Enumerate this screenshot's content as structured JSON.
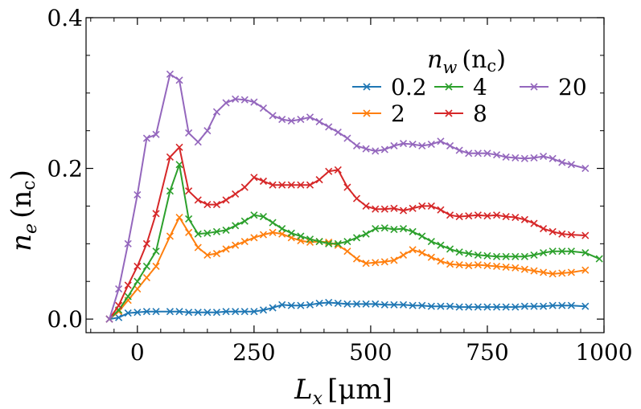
{
  "chart_data": {
    "type": "line",
    "xlabel_main": "L",
    "xlabel_sub": "x",
    "xlabel_unit": "[μm]",
    "ylabel_main": "n",
    "ylabel_sub": "e",
    "ylabel_unit": "(n",
    "ylabel_unit_sub": "c",
    "ylabel_unit_close": ")",
    "xlim": [
      -110,
      1000
    ],
    "ylim": [
      -0.018,
      0.4
    ],
    "xticks": [
      {
        "value": 0,
        "label": "0"
      },
      {
        "value": 250,
        "label": "250"
      },
      {
        "value": 500,
        "label": "500"
      },
      {
        "value": 750,
        "label": "750"
      },
      {
        "value": 1000,
        "label": "1000"
      }
    ],
    "yticks": [
      {
        "value": 0.0,
        "label": "0.0"
      },
      {
        "value": 0.2,
        "label": "0.2"
      },
      {
        "value": 0.4,
        "label": "0.4"
      }
    ],
    "legend": {
      "title_main": "n",
      "title_sub": "w",
      "title_unit": "(n",
      "title_unit_sub": "c",
      "title_unit_close": ")",
      "placement": "top-right",
      "columns": 3
    },
    "series": [
      {
        "name": "0.2",
        "color": "#1f77b4",
        "x": [
          -60,
          -40,
          -20,
          0,
          20,
          40,
          70,
          90,
          110,
          130,
          150,
          170,
          190,
          210,
          230,
          250,
          270,
          290,
          310,
          330,
          350,
          370,
          390,
          410,
          430,
          450,
          470,
          490,
          510,
          530,
          550,
          570,
          590,
          610,
          630,
          650,
          670,
          690,
          710,
          730,
          750,
          770,
          790,
          810,
          830,
          850,
          870,
          890,
          910,
          930,
          960
        ],
        "y": [
          0.0,
          0.002,
          0.008,
          0.009,
          0.01,
          0.01,
          0.01,
          0.01,
          0.009,
          0.009,
          0.009,
          0.009,
          0.01,
          0.01,
          0.01,
          0.01,
          0.012,
          0.015,
          0.019,
          0.018,
          0.018,
          0.019,
          0.021,
          0.022,
          0.021,
          0.02,
          0.02,
          0.02,
          0.02,
          0.019,
          0.019,
          0.019,
          0.018,
          0.018,
          0.017,
          0.017,
          0.017,
          0.016,
          0.016,
          0.016,
          0.016,
          0.016,
          0.016,
          0.016,
          0.017,
          0.017,
          0.017,
          0.018,
          0.018,
          0.018,
          0.017
        ]
      },
      {
        "name": "2",
        "color": "#ff7f0e",
        "x": [
          -60,
          -40,
          -20,
          0,
          20,
          40,
          70,
          90,
          110,
          130,
          150,
          170,
          190,
          210,
          230,
          250,
          270,
          290,
          310,
          330,
          350,
          370,
          390,
          410,
          430,
          450,
          470,
          490,
          510,
          530,
          550,
          570,
          590,
          610,
          630,
          650,
          670,
          690,
          710,
          730,
          750,
          770,
          790,
          810,
          830,
          850,
          870,
          890,
          910,
          930,
          960
        ],
        "y": [
          0.0,
          0.01,
          0.025,
          0.04,
          0.055,
          0.07,
          0.11,
          0.135,
          0.115,
          0.095,
          0.085,
          0.087,
          0.093,
          0.098,
          0.103,
          0.108,
          0.112,
          0.115,
          0.113,
          0.108,
          0.104,
          0.102,
          0.103,
          0.102,
          0.098,
          0.09,
          0.08,
          0.074,
          0.075,
          0.076,
          0.078,
          0.085,
          0.092,
          0.088,
          0.082,
          0.077,
          0.073,
          0.072,
          0.071,
          0.072,
          0.071,
          0.07,
          0.069,
          0.068,
          0.066,
          0.064,
          0.062,
          0.06,
          0.061,
          0.062,
          0.065
        ]
      },
      {
        "name": "4",
        "color": "#2ca02c",
        "x": [
          -60,
          -40,
          -20,
          0,
          20,
          40,
          70,
          90,
          110,
          130,
          150,
          170,
          190,
          210,
          230,
          250,
          270,
          290,
          310,
          330,
          350,
          370,
          390,
          410,
          430,
          450,
          470,
          490,
          510,
          530,
          550,
          570,
          590,
          610,
          630,
          650,
          670,
          690,
          710,
          730,
          750,
          770,
          790,
          810,
          830,
          850,
          870,
          890,
          910,
          930,
          960,
          990
        ],
        "y": [
          0.0,
          0.012,
          0.03,
          0.05,
          0.07,
          0.09,
          0.17,
          0.205,
          0.133,
          0.113,
          0.114,
          0.116,
          0.118,
          0.124,
          0.13,
          0.138,
          0.136,
          0.128,
          0.12,
          0.114,
          0.11,
          0.106,
          0.103,
          0.1,
          0.1,
          0.103,
          0.108,
          0.113,
          0.12,
          0.121,
          0.119,
          0.12,
          0.116,
          0.11,
          0.103,
          0.098,
          0.093,
          0.089,
          0.087,
          0.085,
          0.084,
          0.083,
          0.083,
          0.083,
          0.083,
          0.085,
          0.088,
          0.09,
          0.09,
          0.09,
          0.088,
          0.08
        ]
      },
      {
        "name": "8",
        "color": "#d62728",
        "x": [
          -60,
          -40,
          -20,
          0,
          20,
          40,
          70,
          90,
          110,
          130,
          150,
          170,
          190,
          210,
          230,
          250,
          270,
          290,
          310,
          330,
          350,
          370,
          390,
          410,
          430,
          450,
          470,
          490,
          510,
          530,
          550,
          570,
          590,
          610,
          630,
          650,
          670,
          690,
          710,
          730,
          750,
          770,
          790,
          810,
          830,
          850,
          870,
          890,
          910,
          930,
          960
        ],
        "y": [
          0.0,
          0.018,
          0.045,
          0.07,
          0.1,
          0.14,
          0.215,
          0.228,
          0.17,
          0.158,
          0.152,
          0.152,
          0.158,
          0.166,
          0.175,
          0.188,
          0.183,
          0.178,
          0.178,
          0.178,
          0.178,
          0.178,
          0.185,
          0.196,
          0.198,
          0.175,
          0.16,
          0.15,
          0.146,
          0.146,
          0.147,
          0.144,
          0.147,
          0.15,
          0.15,
          0.145,
          0.138,
          0.136,
          0.137,
          0.138,
          0.137,
          0.138,
          0.136,
          0.135,
          0.132,
          0.127,
          0.12,
          0.116,
          0.113,
          0.112,
          0.111
        ]
      },
      {
        "name": "20",
        "color": "#9467bd",
        "x": [
          -60,
          -40,
          -20,
          0,
          20,
          40,
          70,
          90,
          110,
          130,
          150,
          170,
          190,
          210,
          230,
          250,
          270,
          290,
          310,
          330,
          350,
          370,
          390,
          410,
          430,
          450,
          470,
          490,
          510,
          530,
          550,
          570,
          590,
          610,
          630,
          650,
          670,
          690,
          710,
          730,
          750,
          770,
          790,
          810,
          830,
          850,
          870,
          890,
          910,
          930,
          960
        ],
        "y": [
          0.0,
          0.04,
          0.1,
          0.165,
          0.24,
          0.245,
          0.325,
          0.317,
          0.247,
          0.235,
          0.25,
          0.275,
          0.287,
          0.292,
          0.291,
          0.288,
          0.28,
          0.27,
          0.265,
          0.263,
          0.265,
          0.268,
          0.262,
          0.255,
          0.248,
          0.24,
          0.23,
          0.226,
          0.223,
          0.225,
          0.23,
          0.233,
          0.232,
          0.23,
          0.232,
          0.236,
          0.23,
          0.224,
          0.22,
          0.22,
          0.22,
          0.218,
          0.215,
          0.214,
          0.213,
          0.214,
          0.216,
          0.213,
          0.208,
          0.205,
          0.2
        ]
      }
    ]
  }
}
